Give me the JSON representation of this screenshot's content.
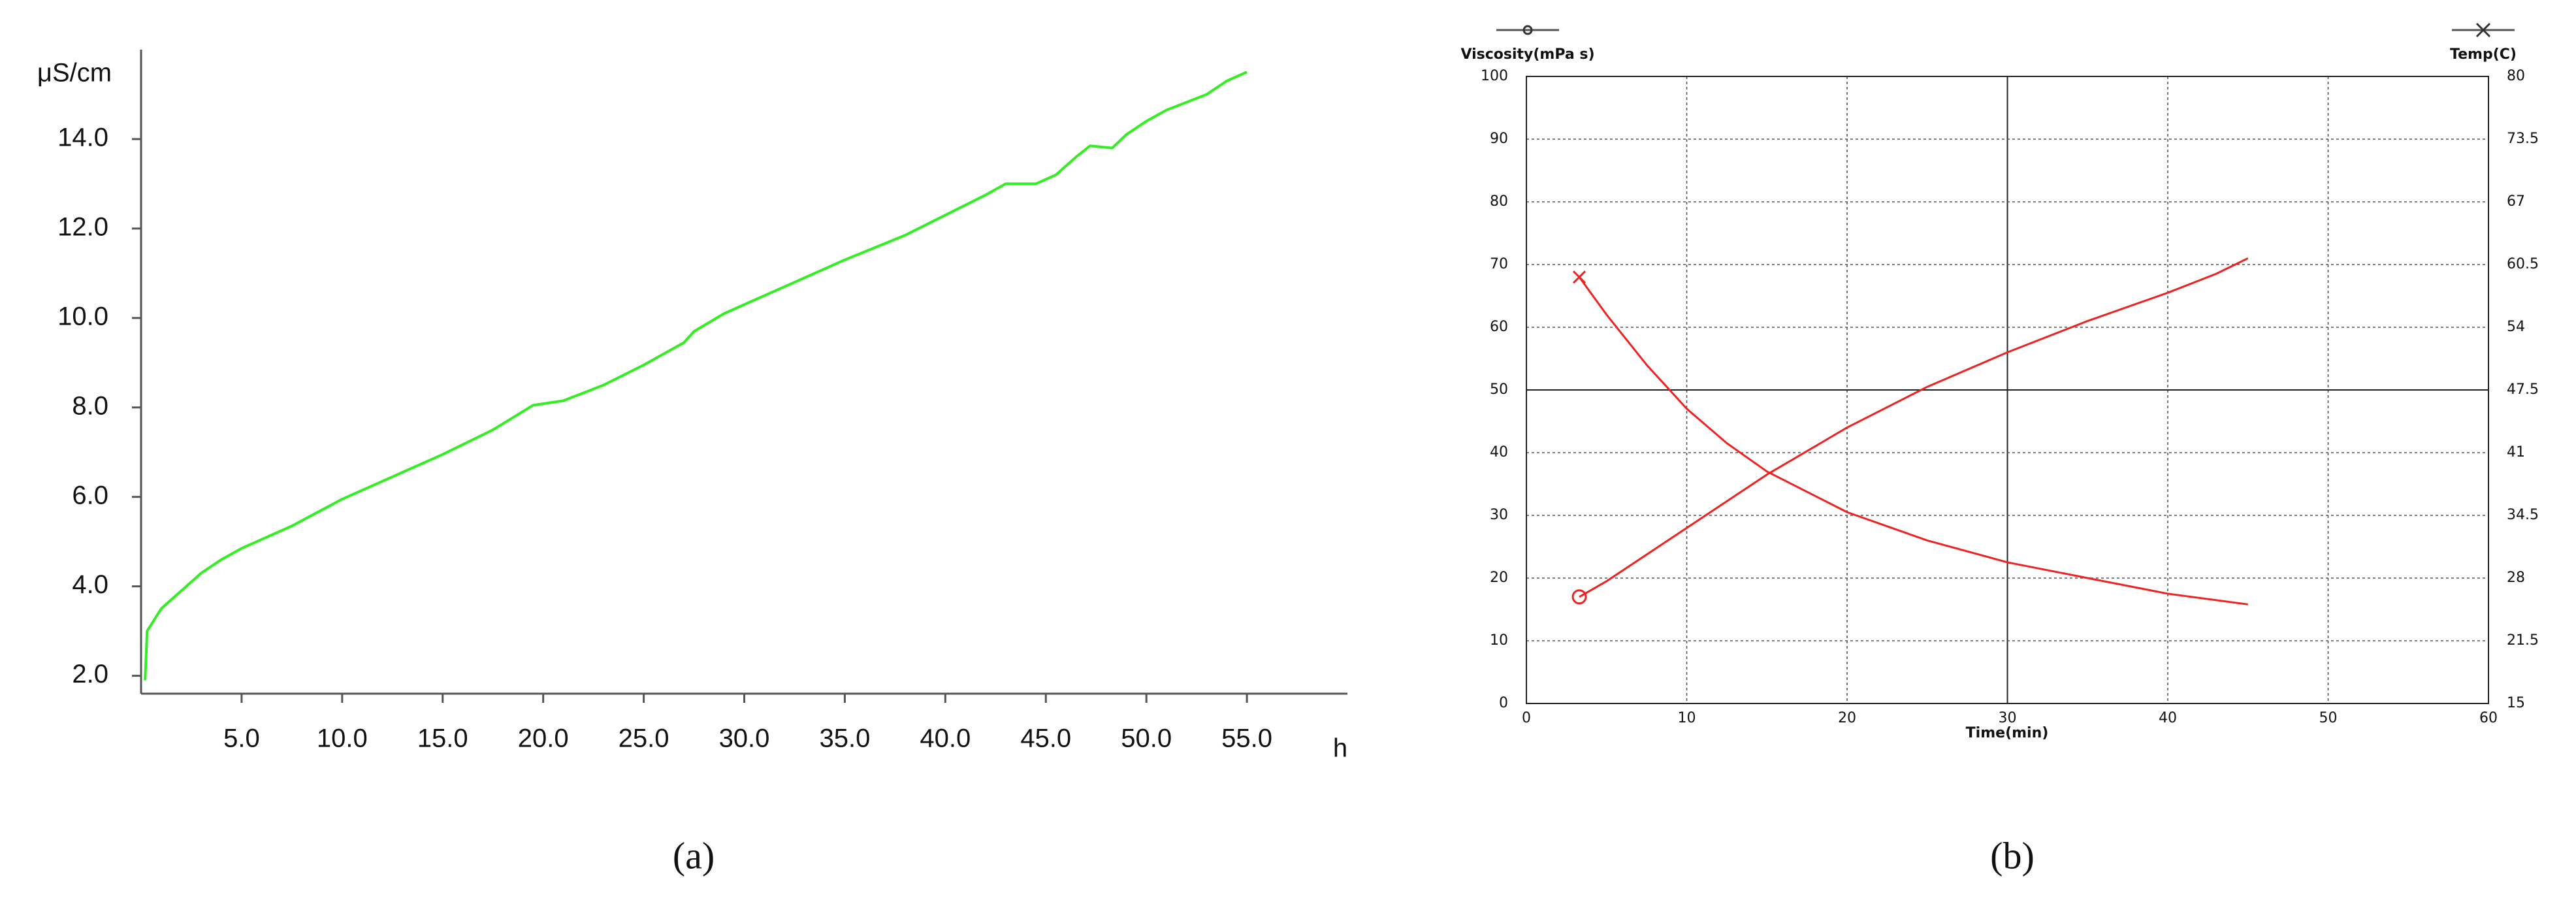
{
  "chart_data": [
    {
      "type": "line",
      "y_label": "μS/cm",
      "x_label": "h",
      "caption": "(a)",
      "xlim": [
        0,
        60
      ],
      "ylim": [
        1.6,
        16
      ],
      "xticks": [
        {
          "value": 5,
          "label": "5.0"
        },
        {
          "value": 10,
          "label": "10.0"
        },
        {
          "value": 15,
          "label": "15.0"
        },
        {
          "value": 20,
          "label": "20.0"
        },
        {
          "value": 25,
          "label": "25.0"
        },
        {
          "value": 30,
          "label": "30.0"
        },
        {
          "value": 35,
          "label": "35.0"
        },
        {
          "value": 40,
          "label": "40.0"
        },
        {
          "value": 45,
          "label": "45.0"
        },
        {
          "value": 50,
          "label": "50.0"
        },
        {
          "value": 55,
          "label": "55.0"
        }
      ],
      "yticks": [
        {
          "value": 2,
          "label": "2.0"
        },
        {
          "value": 4,
          "label": "4.0"
        },
        {
          "value": 6,
          "label": "6.0"
        },
        {
          "value": 8,
          "label": "8.0"
        },
        {
          "value": 10,
          "label": "10.0"
        },
        {
          "value": 12,
          "label": "12.0"
        },
        {
          "value": 14,
          "label": "14.0"
        }
      ],
      "grid": false,
      "series": [
        {
          "color": "#33ee22",
          "x": [
            0.2,
            0.3,
            1,
            2,
            3,
            4,
            5,
            7.5,
            10,
            12.5,
            15,
            17.5,
            19.5,
            21,
            23,
            25,
            27,
            27.5,
            29,
            31,
            32,
            35,
            38,
            40,
            42,
            43,
            44.5,
            45.5,
            46.5,
            47.2,
            48.3,
            49,
            50,
            51,
            53,
            54,
            55
          ],
          "values": [
            1.9,
            3.0,
            3.5,
            3.9,
            4.3,
            4.6,
            4.85,
            5.35,
            5.95,
            6.45,
            6.95,
            7.5,
            8.05,
            8.15,
            8.5,
            8.95,
            9.45,
            9.7,
            10.1,
            10.5,
            10.7,
            11.3,
            11.85,
            12.3,
            12.75,
            13.0,
            13.0,
            13.2,
            13.6,
            13.85,
            13.8,
            14.1,
            14.4,
            14.65,
            15.0,
            15.3,
            15.5
          ]
        }
      ]
    },
    {
      "type": "line",
      "x_label": "Time(min)",
      "caption": "(b)",
      "xlim": [
        0,
        60
      ],
      "ylim": [
        0,
        100
      ],
      "y2lim": [
        15,
        80
      ],
      "xticks": [
        0,
        10,
        20,
        30,
        40,
        50,
        60
      ],
      "yticks": [
        0,
        10,
        20,
        30,
        40,
        50,
        60,
        70,
        80,
        90,
        100
      ],
      "y2ticks": [
        15,
        21.5,
        28,
        34.5,
        41,
        47.5,
        54,
        60.5,
        67,
        73.5,
        80
      ],
      "grid": true,
      "series": [
        {
          "name": "Viscosity(mPa s)",
          "color": "#ee2222",
          "marker": "o",
          "x": [
            3.3,
            5,
            10,
            15,
            20,
            25,
            30,
            35,
            40,
            43,
            45
          ],
          "values": [
            17,
            19.5,
            28,
            36.5,
            44,
            50.5,
            56,
            61,
            65.5,
            68.5,
            71
          ]
        },
        {
          "name": "Temp(C)",
          "color": "#ee2222",
          "marker": "x",
          "axis": "y2",
          "x": [
            3.3,
            5,
            7.5,
            10,
            12.5,
            15,
            20,
            25,
            30,
            35,
            40,
            45
          ],
          "values": [
            59.2,
            55.3,
            50.1,
            45.55,
            41.98,
            39.05,
            34.83,
            31.9,
            29.63,
            28,
            26.38,
            25.27
          ]
        }
      ]
    }
  ]
}
